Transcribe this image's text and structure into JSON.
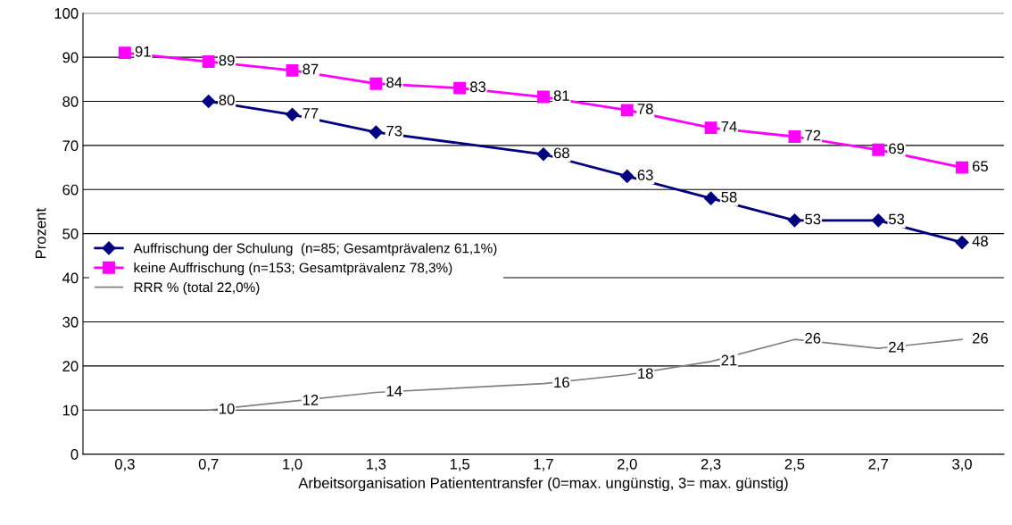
{
  "chart_data": {
    "type": "line",
    "xlabel": "Arbeitsorganisation Patiententransfer (0=max. ungünstig, 3= max. günstig)",
    "ylabel": "Prozent",
    "categories": [
      "0,3",
      "0,7",
      "1,0",
      "1,3",
      "1,5",
      "1,7",
      "2,0",
      "2,3",
      "2,5",
      "2,7",
      "3,0"
    ],
    "series": [
      {
        "name": "Auffrischung der Schulung  (n=85; Gesamtprävalenz 61,1%)",
        "color": "#000080",
        "marker": "diamond",
        "values": [
          null,
          80,
          77,
          73,
          null,
          68,
          63,
          58,
          53,
          53,
          48
        ]
      },
      {
        "name": "keine Auffrischung (n=153; Gesamtprävalenz 78,3%)",
        "color": "#ff00ff",
        "marker": "square",
        "values": [
          91,
          89,
          87,
          84,
          83,
          81,
          78,
          74,
          72,
          69,
          65
        ]
      },
      {
        "name": "RRR % (total 22,0%)",
        "color": "#808080",
        "values": [
          null,
          10,
          12,
          14,
          null,
          16,
          18,
          21,
          26,
          24,
          26
        ]
      }
    ],
    "ylim": [
      0,
      100
    ],
    "yticks": [
      0,
      10,
      20,
      30,
      40,
      50,
      60,
      70,
      80,
      90,
      100
    ],
    "grid": "y",
    "legend": "left",
    "data_labels": true
  }
}
